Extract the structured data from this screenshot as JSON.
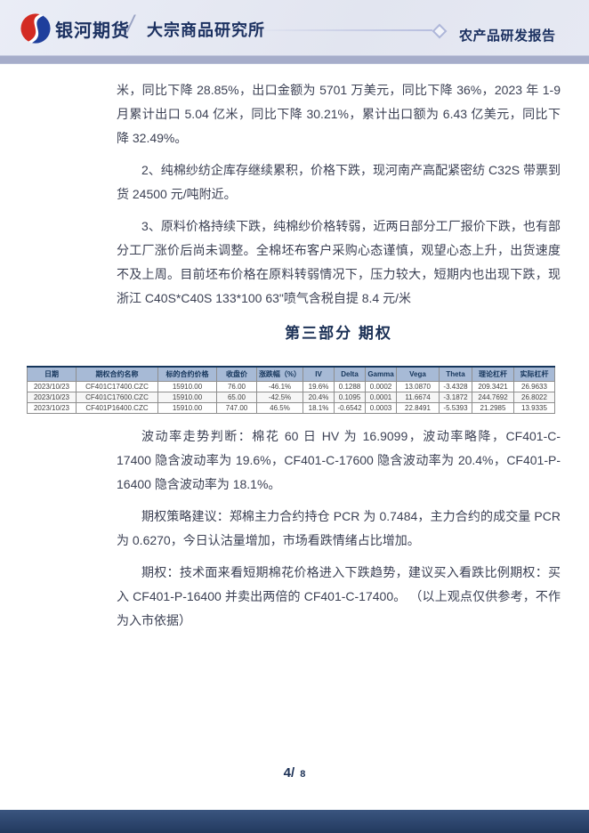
{
  "header": {
    "brand": "银河期货",
    "separator": "/",
    "institute": "大宗商品研究所",
    "report_type": "农产品研发报告"
  },
  "body": {
    "paragraphs": [
      "米，同比下降 28.85%，出口金额为 5701 万美元，同比下降 36%，2023 年 1-9 月累计出口 5.04 亿米，同比下降 30.21%，累计出口额为 6.43 亿美元，同比下降 32.49%。",
      "2、纯棉纱纺企库存继续累积，价格下跌，现河南产高配紧密纺 C32S 带票到货 24500 元/吨附近。",
      "3、原料价格持续下跌，纯棉纱价格转弱，近两日部分工厂报价下跌，也有部分工厂涨价后尚未调整。全棉坯布客户采购心态谨慎，观望心态上升，出货速度不及上周。目前坯布价格在原料转弱情况下，压力较大，短期内也出现下跌，现浙江 C40S*C40S 133*100 63\"喷气含税自提 8.4 元/米"
    ]
  },
  "section": {
    "title": "第三部分 期权"
  },
  "table": {
    "headers": [
      "日期",
      "期权合约名称",
      "标的合约价格",
      "收盘价",
      "涨跌幅（%）",
      "IV",
      "Delta",
      "Gamma",
      "Vega",
      "Theta",
      "理论杠杆",
      "实际杠杆"
    ],
    "rows": [
      [
        "2023/10/23",
        "CF401C17400.CZC",
        "15910.00",
        "76.00",
        "-46.1%",
        "19.6%",
        "0.1288",
        "0.0002",
        "13.0870",
        "-3.4328",
        "209.3421",
        "26.9633"
      ],
      [
        "2023/10/23",
        "CF401C17600.CZC",
        "15910.00",
        "65.00",
        "-42.5%",
        "20.4%",
        "0.1095",
        "0.0001",
        "11.6674",
        "-3.1872",
        "244.7692",
        "26.8022"
      ],
      [
        "2023/10/23",
        "CF401P16400.CZC",
        "15910.00",
        "747.00",
        "46.5%",
        "18.1%",
        "-0.6542",
        "0.0003",
        "22.8491",
        "-5.5393",
        "21.2985",
        "13.9335"
      ]
    ]
  },
  "analysis": {
    "paragraphs": [
      "波动率走势判断：棉花 60 日 HV 为 16.9099，波动率略降，CF401-C-17400 隐含波动率为 19.6%，CF401-C-17600 隐含波动率为 20.4%，CF401-P-16400 隐含波动率为 18.1%。",
      "期权策略建议：郑棉主力合约持仓 PCR 为 0.7484，主力合约的成交量 PCR 为 0.6270，今日认沽量增加，市场看跌情绪占比增加。",
      "期权：技术面来看短期棉花价格进入下跌趋势，建议买入看跌比例期权：买入 CF401-P-16400 并卖出两倍的 CF401-C-17400。 （以上观点仅供参考，不作为入市依据）"
    ]
  },
  "footer": {
    "page_current": "4/",
    "page_total": "8"
  },
  "colors": {
    "brand_navy": "#1b3060",
    "logo_red": "#d32b23",
    "logo_blue": "#1f3f9c",
    "header_bg": "#e5e8f2",
    "header_band": "#a6adca",
    "table_header_bg": "#a7bad6",
    "footer_bar": "#22395f"
  }
}
